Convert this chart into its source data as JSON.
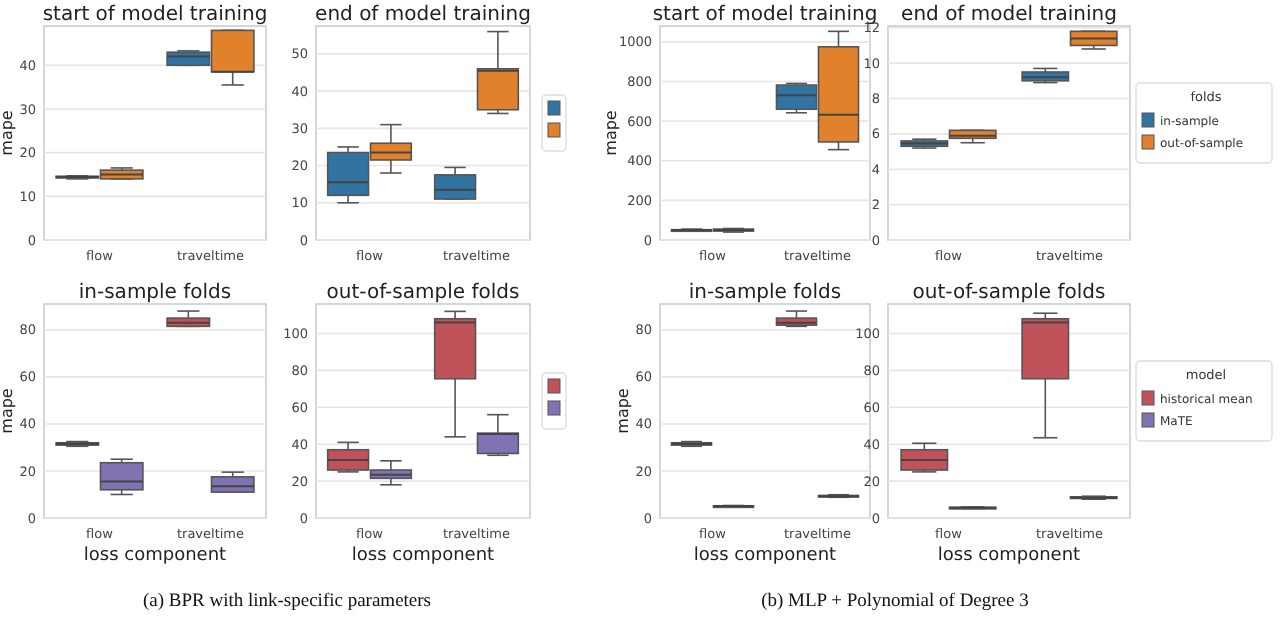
{
  "chart_data": [
    {
      "type": "box",
      "title": "start of model training",
      "ylabel": "mape",
      "categories": [
        "flow",
        "traveltime"
      ],
      "ylim": [
        0,
        49
      ],
      "yticks": [
        0,
        10,
        20,
        30,
        40
      ],
      "grid": "y",
      "series": [
        {
          "color": "#3274a1",
          "boxes": [
            {
              "low": 14,
              "q1": 14.2,
              "median": 14.4,
              "q3": 14.6,
              "high": 14.7
            },
            {
              "low": 40,
              "q1": 40,
              "median": 42,
              "q3": 43,
              "high": 43.3
            }
          ]
        },
        {
          "color": "#e1812c",
          "boxes": [
            {
              "low": 14,
              "q1": 14,
              "median": 15,
              "q3": 16,
              "high": 16.5
            },
            {
              "low": 35.5,
              "q1": 38.5,
              "median": 38.5,
              "q3": 48,
              "high": 48
            }
          ]
        }
      ]
    },
    {
      "type": "box",
      "title": "end of model training",
      "categories": [
        "flow",
        "traveltime"
      ],
      "ylim": [
        0,
        57.5
      ],
      "yticks": [
        0,
        10,
        20,
        30,
        40,
        50
      ],
      "grid": "y",
      "legend": "right",
      "series": [
        {
          "color": "#3274a1",
          "boxes": [
            {
              "low": 10,
              "q1": 12,
              "median": 15.5,
              "q3": 23.5,
              "high": 25
            },
            {
              "low": 11,
              "q1": 11,
              "median": 13.5,
              "q3": 17.5,
              "high": 19.5
            }
          ]
        },
        {
          "color": "#e1812c",
          "boxes": [
            {
              "low": 18,
              "q1": 21.5,
              "median": 23.5,
              "q3": 26,
              "high": 31
            },
            {
              "low": 34,
              "q1": 35,
              "median": 45.5,
              "q3": 46,
              "high": 56
            }
          ]
        }
      ]
    },
    {
      "type": "box",
      "title": "start of model training",
      "ylabel": "mape",
      "categories": [
        "flow",
        "traveltime"
      ],
      "ylim": [
        0,
        1080
      ],
      "yticks": [
        0,
        200,
        400,
        600,
        800,
        1000
      ],
      "grid": "y",
      "series": [
        {
          "color": "#3274a1",
          "boxes": [
            {
              "low": 45,
              "q1": 48,
              "median": 50,
              "q3": 52,
              "high": 55
            },
            {
              "low": 642,
              "q1": 660,
              "median": 730,
              "q3": 782,
              "high": 790
            }
          ]
        },
        {
          "color": "#e1812c",
          "boxes": [
            {
              "low": 40,
              "q1": 45,
              "median": 50,
              "q3": 55,
              "high": 58
            },
            {
              "low": 456,
              "q1": 495,
              "median": 632,
              "q3": 975,
              "high": 1053
            }
          ]
        }
      ]
    },
    {
      "type": "box",
      "title": "end of model training",
      "categories": [
        "flow",
        "traveltime"
      ],
      "ylim": [
        0,
        12.1
      ],
      "yticks": [
        0,
        2,
        4,
        6,
        8,
        10,
        12
      ],
      "grid": "y",
      "legend": "right",
      "legend_title": "folds",
      "series": [
        {
          "name": "in-sample",
          "color": "#3274a1",
          "boxes": [
            {
              "low": 5.2,
              "q1": 5.3,
              "median": 5.45,
              "q3": 5.6,
              "high": 5.7
            },
            {
              "low": 8.9,
              "q1": 9,
              "median": 9.2,
              "q3": 9.5,
              "high": 9.7
            }
          ]
        },
        {
          "name": "out-of-sample",
          "color": "#e1812c",
          "boxes": [
            {
              "low": 5.5,
              "q1": 5.75,
              "median": 5.9,
              "q3": 6.2,
              "high": 6.2
            },
            {
              "low": 10.8,
              "q1": 11,
              "median": 11.4,
              "q3": 11.8,
              "high": 11.8
            }
          ]
        }
      ]
    },
    {
      "type": "box",
      "title": "in-sample folds",
      "ylabel": "mape",
      "xlabel": "loss component",
      "categories": [
        "flow",
        "traveltime"
      ],
      "ylim": [
        0,
        91
      ],
      "yticks": [
        0,
        20,
        40,
        60,
        80
      ],
      "grid": "y",
      "annotations": [
        "(a) BPR with link-specific parameters"
      ],
      "series": [
        {
          "color": "#c0525a",
          "boxes": [
            {
              "low": 30.5,
              "q1": 31,
              "median": 31.5,
              "q3": 32,
              "high": 32.5
            },
            {
              "low": 81.5,
              "q1": 81.5,
              "median": 83,
              "q3": 85,
              "high": 88
            }
          ]
        },
        {
          "color": "#8172b3",
          "boxes": [
            {
              "low": 10,
              "q1": 12,
              "median": 15.5,
              "q3": 23.5,
              "high": 25
            },
            {
              "low": 11,
              "q1": 11,
              "median": 13.5,
              "q3": 17.5,
              "high": 19.5
            }
          ]
        }
      ]
    },
    {
      "type": "box",
      "title": "out-of-sample folds",
      "xlabel": "loss component",
      "categories": [
        "flow",
        "traveltime"
      ],
      "ylim": [
        0,
        116
      ],
      "yticks": [
        0,
        20,
        40,
        60,
        80,
        100
      ],
      "grid": "y",
      "legend": "right",
      "series": [
        {
          "color": "#c0525a",
          "boxes": [
            {
              "low": 25,
              "q1": 26,
              "median": 31.5,
              "q3": 37,
              "high": 41
            },
            {
              "low": 44,
              "q1": 75.5,
              "median": 106,
              "q3": 108,
              "high": 112
            }
          ]
        },
        {
          "color": "#8172b3",
          "boxes": [
            {
              "low": 18,
              "q1": 21.5,
              "median": 23.5,
              "q3": 26,
              "high": 31
            },
            {
              "low": 34,
              "q1": 35,
              "median": 45.5,
              "q3": 46,
              "high": 56
            }
          ]
        }
      ]
    },
    {
      "type": "box",
      "title": "in-sample folds",
      "ylabel": "mape",
      "xlabel": "loss component",
      "categories": [
        "flow",
        "traveltime"
      ],
      "ylim": [
        0,
        91
      ],
      "yticks": [
        0,
        20,
        40,
        60,
        80
      ],
      "grid": "y",
      "annotations": [
        "(b) MLP + Polynomial of Degree 3"
      ],
      "series": [
        {
          "color": "#c0525a",
          "boxes": [
            {
              "low": 30.5,
              "q1": 31,
              "median": 31.5,
              "q3": 32,
              "high": 32.5
            },
            {
              "low": 81.5,
              "q1": 82,
              "median": 83,
              "q3": 85,
              "high": 88
            }
          ]
        },
        {
          "color": "#8172b3",
          "boxes": [
            {
              "low": 4.8,
              "q1": 5,
              "median": 5.1,
              "q3": 5.2,
              "high": 5.3
            },
            {
              "low": 8.8,
              "q1": 9,
              "median": 9.3,
              "q3": 9.6,
              "high": 9.9
            }
          ]
        }
      ]
    },
    {
      "type": "box",
      "title": "out-of-sample folds",
      "xlabel": "loss component",
      "categories": [
        "flow",
        "traveltime"
      ],
      "ylim": [
        0,
        116
      ],
      "yticks": [
        0,
        20,
        40,
        60,
        80,
        100
      ],
      "grid": "y",
      "legend": "right",
      "legend_title": "model",
      "series": [
        {
          "name": "historical mean",
          "color": "#c0525a",
          "boxes": [
            {
              "low": 25,
              "q1": 26,
              "median": 31.5,
              "q3": 37,
              "high": 40.5
            },
            {
              "low": 43.5,
              "q1": 75.5,
              "median": 106,
              "q3": 108,
              "high": 111
            }
          ]
        },
        {
          "name": "MaTE",
          "color": "#8172b3",
          "boxes": [
            {
              "low": 5.2,
              "q1": 5.4,
              "median": 5.6,
              "q3": 5.8,
              "high": 6
            },
            {
              "low": 10.2,
              "q1": 10.6,
              "median": 11,
              "q3": 11.5,
              "high": 11.8
            }
          ]
        }
      ]
    }
  ]
}
